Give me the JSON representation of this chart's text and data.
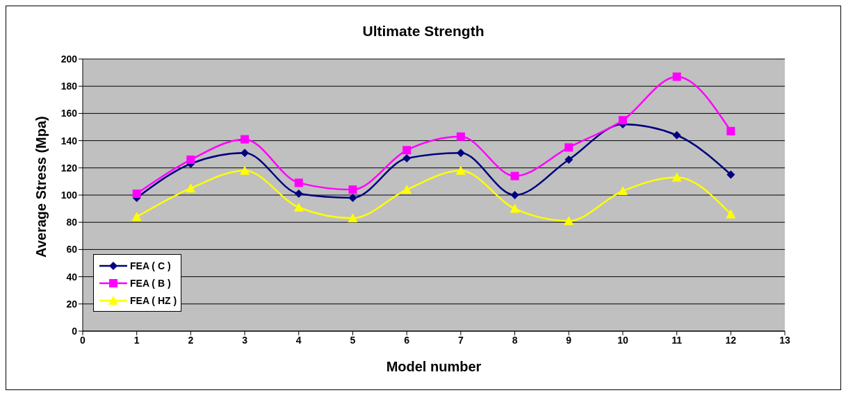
{
  "chart_data": {
    "type": "line",
    "title": "Ultimate Strength",
    "xlabel": "Model number",
    "ylabel": "Average Stress (Mpa)",
    "x": [
      1,
      2,
      3,
      4,
      5,
      6,
      7,
      8,
      9,
      10,
      11,
      12
    ],
    "series": [
      {
        "name": "FEA ( C )",
        "color": "#000080",
        "marker": "diamond",
        "values": [
          98,
          123,
          131,
          101,
          98,
          127,
          131,
          100,
          126,
          152,
          144,
          115
        ]
      },
      {
        "name": "FEA ( B )",
        "color": "#ff00ff",
        "marker": "square",
        "values": [
          101,
          126,
          141,
          109,
          104,
          133,
          143,
          114,
          135,
          155,
          187,
          147
        ]
      },
      {
        "name": "FEA ( HZ )",
        "color": "#ffff00",
        "marker": "triangle",
        "values": [
          84,
          105,
          118,
          91,
          83,
          104,
          118,
          90,
          81,
          103,
          113,
          86
        ]
      }
    ],
    "xlim": [
      0,
      13
    ],
    "xticks": [
      0,
      1,
      2,
      3,
      4,
      5,
      6,
      7,
      8,
      9,
      10,
      11,
      12,
      13
    ],
    "ylim": [
      0,
      200
    ],
    "yticks": [
      0,
      20,
      40,
      60,
      80,
      100,
      120,
      140,
      160,
      180,
      200
    ],
    "grid": "y",
    "legend": "bottom left",
    "line_style": "solid"
  }
}
